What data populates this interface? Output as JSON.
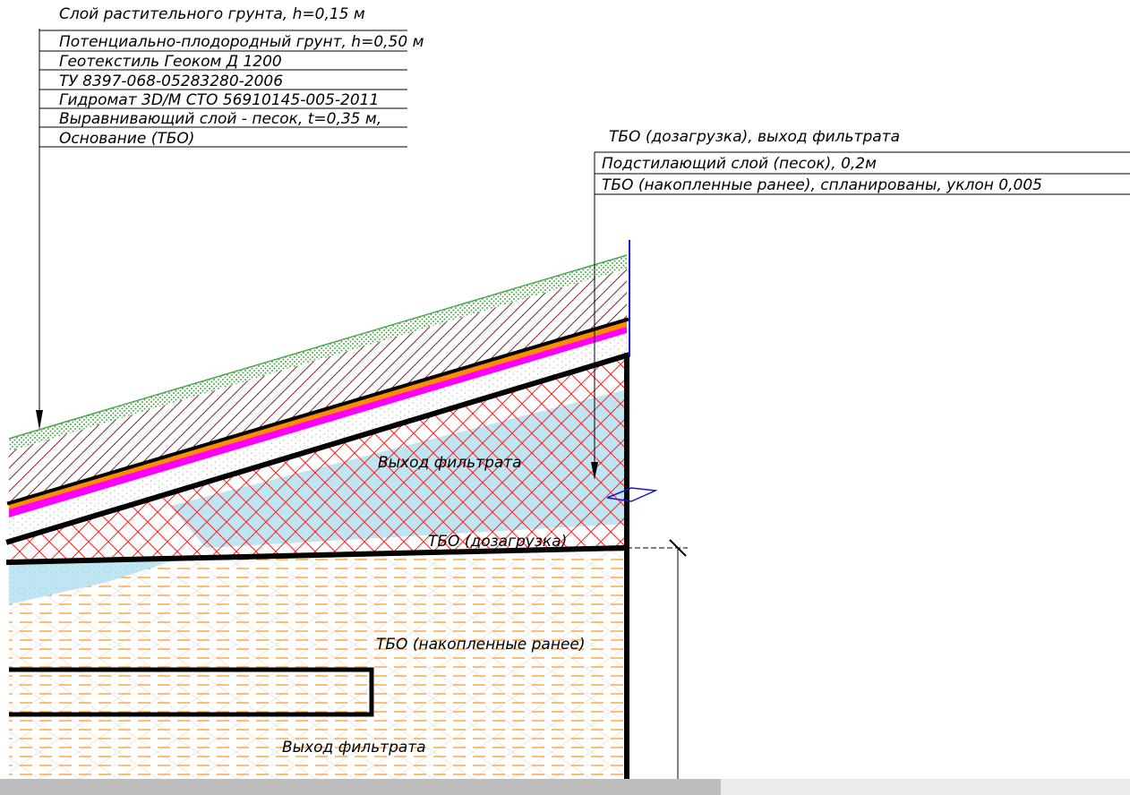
{
  "callout_left": {
    "lines": [
      "Слой растительного грунта, h=0,15 м",
      "Потенциально-плодородный грунт, h=0,50 м",
      "Геотекстиль Геоком Д 1200",
      "ТУ 8397-068-05283280-2006",
      "Гидромат 3D/M СТО 56910145-005-2011",
      "Выравнивающий слой - песок, t=0,35 м,",
      "Основание (ТБО)"
    ]
  },
  "callout_right": {
    "lines": [
      "ТБО (дозагрузка), выход фильтрата",
      "Подстилающий слой (песок), 0,2м",
      "ТБО (накопленные ранее), спланированы, уклон 0,005"
    ]
  },
  "section_labels": {
    "filtrate_upper": "Выход фильтрата",
    "tbo_additional": "ТБО (дозагрузка)",
    "tbo_accumulated": "ТБО (накопленные ранее)",
    "filtrate_lower": "Выход фильтрата"
  },
  "colors": {
    "soil_green": "#6abf6a",
    "fertile_hatch": "#7a2a3a",
    "orange_layer": "#ff8c00",
    "magenta_layer": "#ff00ff",
    "sand": "#e8e8e8",
    "tbo_crosshatch": "#ff2020",
    "filtrate_blue": "#bfe4f2",
    "accumulated_hatch": "#ff9a2a",
    "outline": "#000000",
    "leader_blue": "#1515d0"
  }
}
